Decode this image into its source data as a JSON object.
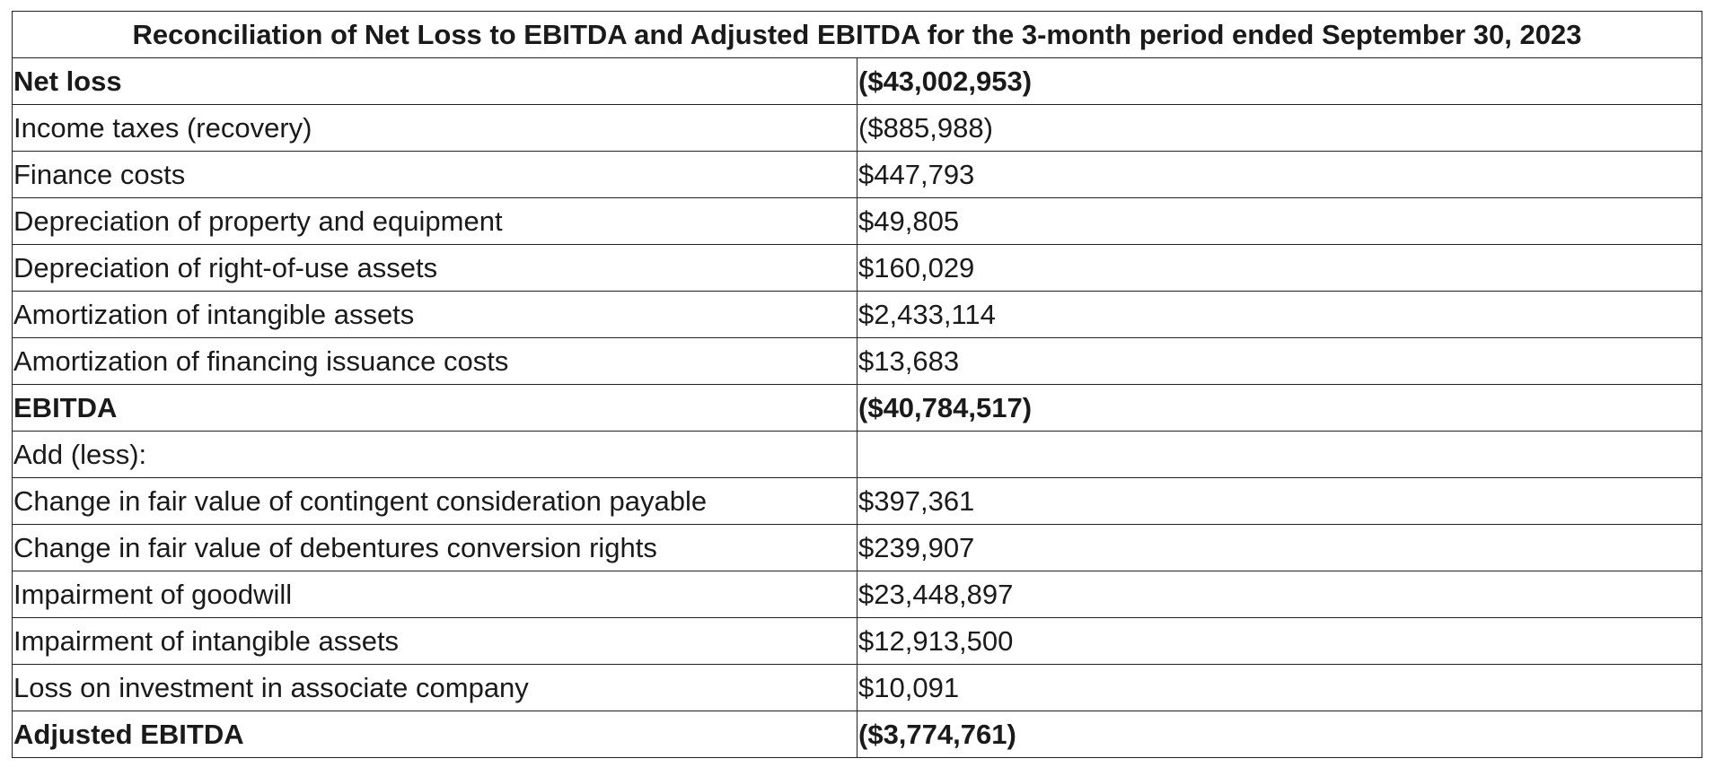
{
  "title": "Reconciliation of Net Loss to EBITDA and Adjusted EBITDA for the 3-month period ended September 30, 2023",
  "rows": [
    {
      "label": "Net loss",
      "value": "($43,002,953)",
      "bold": true
    },
    {
      "label": "Income taxes (recovery)",
      "value": "($885,988)",
      "bold": false
    },
    {
      "label": "Finance costs",
      "value": "$447,793",
      "bold": false
    },
    {
      "label": "Depreciation of property and equipment",
      "value": "$49,805",
      "bold": false
    },
    {
      "label": "Depreciation of right-of-use assets",
      "value": "$160,029",
      "bold": false
    },
    {
      "label": "Amortization of intangible assets",
      "value": "$2,433,114",
      "bold": false
    },
    {
      "label": "Amortization of financing issuance costs",
      "value": "$13,683",
      "bold": false
    },
    {
      "label": "EBITDA",
      "value": "($40,784,517)",
      "bold": true
    },
    {
      "label": "Add (less):",
      "value": "",
      "bold": false
    },
    {
      "label": "Change in fair value of contingent consideration payable",
      "value": "$397,361",
      "bold": false
    },
    {
      "label": "Change in fair value of debentures conversion rights",
      "value": "$239,907",
      "bold": false
    },
    {
      "label": "Impairment of goodwill",
      "value": "$23,448,897",
      "bold": false
    },
    {
      "label": "Impairment of intangible assets",
      "value": "$12,913,500",
      "bold": false
    },
    {
      "label": "Loss on investment in associate company",
      "value": "$10,091",
      "bold": false
    },
    {
      "label": "Adjusted EBITDA",
      "value": "($3,774,761)",
      "bold": true
    }
  ]
}
